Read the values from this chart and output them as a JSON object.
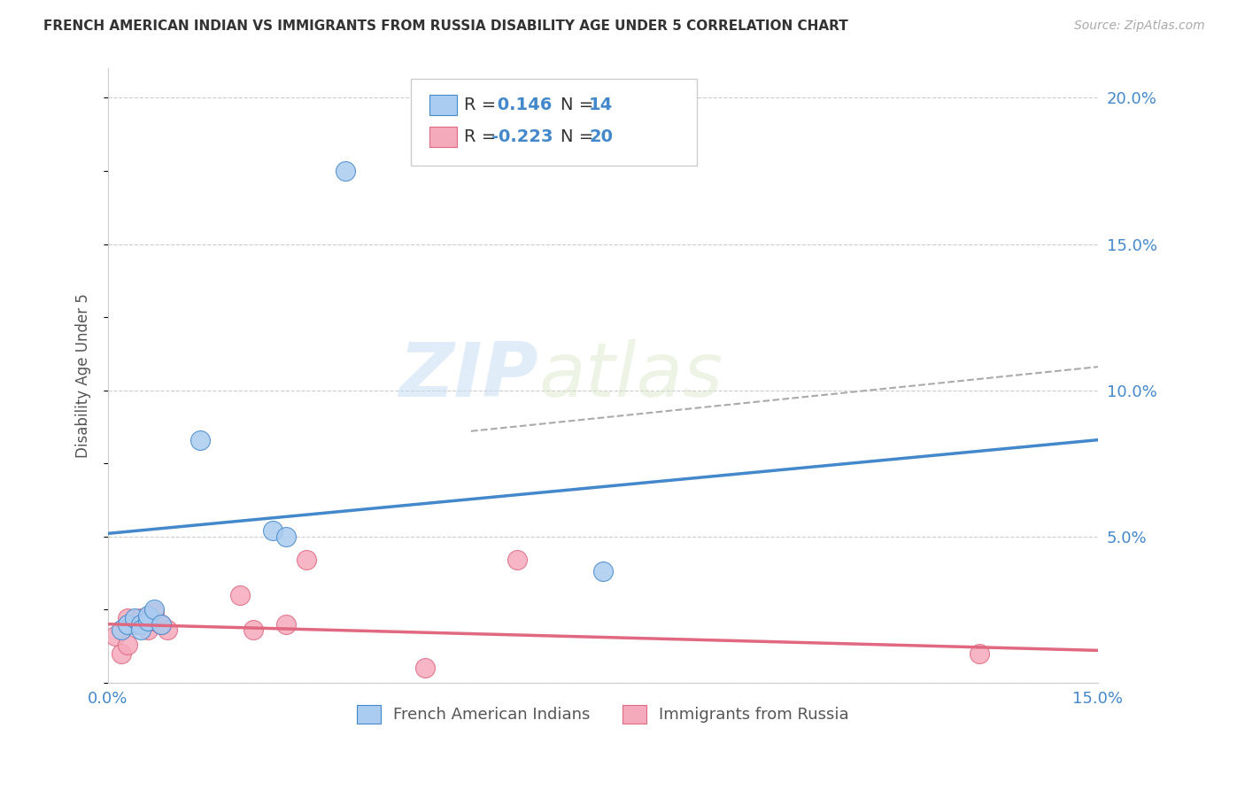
{
  "title": "FRENCH AMERICAN INDIAN VS IMMIGRANTS FROM RUSSIA DISABILITY AGE UNDER 5 CORRELATION CHART",
  "source": "Source: ZipAtlas.com",
  "ylabel": "Disability Age Under 5",
  "xlim": [
    0.0,
    0.15
  ],
  "ylim": [
    0.0,
    0.21
  ],
  "yticks": [
    0.0,
    0.05,
    0.1,
    0.15,
    0.2
  ],
  "ytick_labels": [
    "",
    "5.0%",
    "10.0%",
    "15.0%",
    "20.0%"
  ],
  "blue_R": 0.146,
  "blue_N": 14,
  "pink_R": -0.223,
  "pink_N": 20,
  "blue_scatter_x": [
    0.002,
    0.003,
    0.004,
    0.005,
    0.005,
    0.006,
    0.006,
    0.007,
    0.008,
    0.014,
    0.025,
    0.027,
    0.036,
    0.075
  ],
  "blue_scatter_y": [
    0.018,
    0.02,
    0.022,
    0.02,
    0.018,
    0.021,
    0.023,
    0.025,
    0.02,
    0.083,
    0.052,
    0.05,
    0.175,
    0.038
  ],
  "pink_scatter_x": [
    0.001,
    0.002,
    0.003,
    0.003,
    0.004,
    0.005,
    0.005,
    0.006,
    0.006,
    0.007,
    0.007,
    0.008,
    0.009,
    0.02,
    0.022,
    0.027,
    0.03,
    0.048,
    0.062,
    0.132
  ],
  "pink_scatter_y": [
    0.016,
    0.01,
    0.022,
    0.013,
    0.02,
    0.02,
    0.022,
    0.022,
    0.018,
    0.021,
    0.024,
    0.02,
    0.018,
    0.03,
    0.018,
    0.02,
    0.042,
    0.005,
    0.042,
    0.01
  ],
  "blue_line_x": [
    0.0,
    0.15
  ],
  "blue_line_y": [
    0.051,
    0.083
  ],
  "pink_line_x": [
    0.0,
    0.15
  ],
  "pink_line_y": [
    0.02,
    0.011
  ],
  "dashed_line_x": [
    0.055,
    0.15
  ],
  "dashed_line_y": [
    0.086,
    0.108
  ],
  "blue_color": "#aaccf0",
  "blue_line_color": "#4488cc",
  "pink_color": "#f5aabb",
  "pink_line_color": "#e06880",
  "dashed_line_color": "#aaaaaa",
  "watermark_zip": "ZIP",
  "watermark_atlas": "atlas",
  "legend_label_blue": "French American Indians",
  "legend_label_pink": "Immigrants from Russia",
  "background_color": "#ffffff",
  "grid_color": "#cccccc"
}
